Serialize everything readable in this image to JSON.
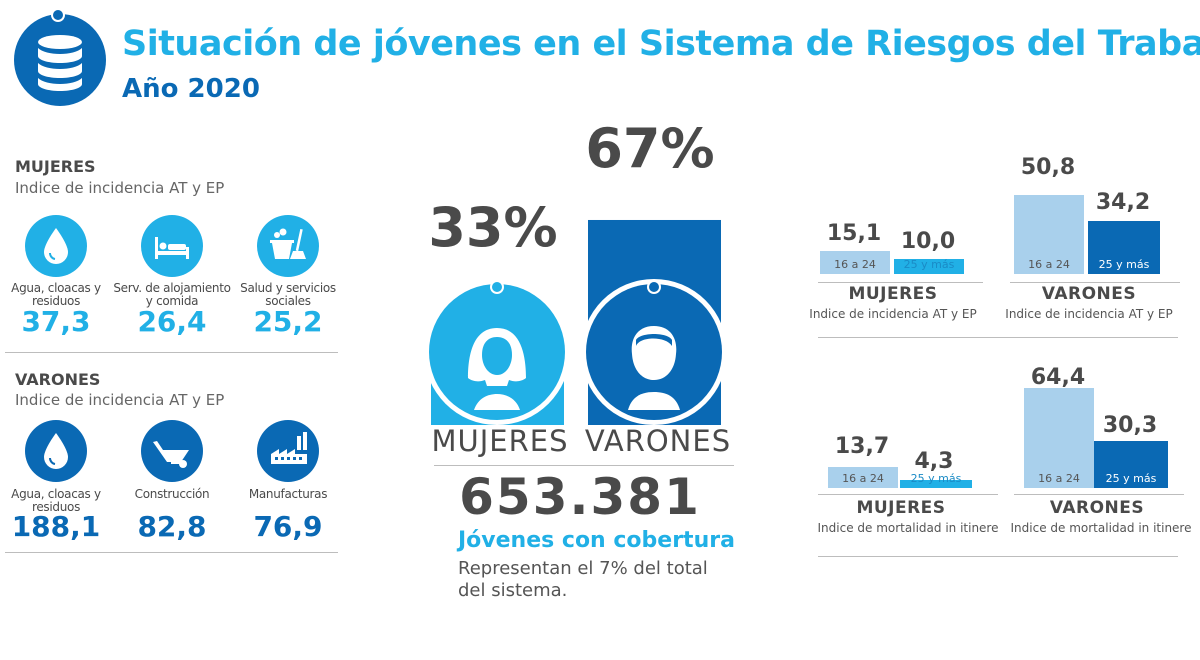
{
  "header": {
    "title": "Situación de  jóvenes en el Sistema de Riesgos del Trabajo.",
    "subtitle": "Año 2020",
    "logo_icon": "database-icon"
  },
  "colors": {
    "light_blue": "#21b0e6",
    "dark_blue": "#0a69b4",
    "pale_blue": "#a9d0ec",
    "dark_text": "#4a4a4a"
  },
  "mujeres_panel": {
    "title": "MUJERES",
    "subtitle": "Indice de incidencia AT y EP",
    "items": [
      {
        "icon": "water-drop-icon",
        "label": "Agua, cloacas y residuos",
        "value": "37,3"
      },
      {
        "icon": "bed-icon",
        "label": "Serv. de alojamiento y comida",
        "value": "26,4"
      },
      {
        "icon": "cleaning-icon",
        "label": "Salud y servicios sociales",
        "value": "25,2"
      }
    ]
  },
  "varones_panel": {
    "title": "VARONES",
    "subtitle": "Indice de incidencia AT y EP",
    "items": [
      {
        "icon": "water-drop-icon",
        "label": "Agua, cloacas y residuos",
        "value": "188,1"
      },
      {
        "icon": "wheelbarrow-icon",
        "label": "Construcción",
        "value": "82,8"
      },
      {
        "icon": "factory-icon",
        "label": "Manufacturas",
        "value": "76,9"
      }
    ]
  },
  "center": {
    "mujeres_pct": "33%",
    "varones_pct": "67%",
    "mujeres_label": "MUJERES",
    "varones_label": "VARONES",
    "total": "653.381",
    "coverage_label": "Jóvenes con cobertura",
    "coverage_note": "Representan el 7% del total del sistema."
  },
  "chart_data": [
    {
      "type": "bar",
      "title": "MUJERES",
      "subtitle": "Indice de incidencia AT y EP",
      "categories": [
        "16 a 24",
        "25 y más"
      ],
      "values": [
        15.1,
        10.0
      ],
      "value_labels": [
        "15,1",
        "10,0"
      ]
    },
    {
      "type": "bar",
      "title": "VARONES",
      "subtitle": "Indice de incidencia AT y EP",
      "categories": [
        "16 a 24",
        "25 y más"
      ],
      "values": [
        50.8,
        34.2
      ],
      "value_labels": [
        "50,8",
        "34,2"
      ]
    },
    {
      "type": "bar",
      "title": "MUJERES",
      "subtitle": "Indice de mortalidad in itinere",
      "categories": [
        "16 a 24",
        "25 y más"
      ],
      "values": [
        13.7,
        4.3
      ],
      "value_labels": [
        "13,7",
        "4,3"
      ]
    },
    {
      "type": "bar",
      "title": "VARONES",
      "subtitle": "Indice de mortalidad in itinere",
      "categories": [
        "16 a 24",
        "25 y más"
      ],
      "values": [
        64.4,
        30.3
      ],
      "value_labels": [
        "64,4",
        "30,3"
      ]
    },
    {
      "type": "bar",
      "title": "",
      "categories": [
        "MUJERES",
        "VARONES"
      ],
      "values": [
        33,
        67
      ],
      "value_labels": [
        "33%",
        "67%"
      ]
    }
  ]
}
